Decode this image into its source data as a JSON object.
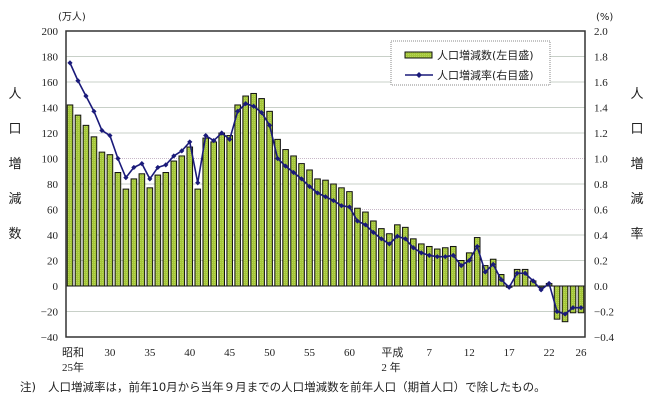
{
  "chart_data": {
    "type": "bar+line",
    "title": "",
    "categories": [
      "S25",
      "S26",
      "S27",
      "S28",
      "S29",
      "S30",
      "S31",
      "S32",
      "S33",
      "S34",
      "S35",
      "S36",
      "S37",
      "S38",
      "S39",
      "S40",
      "S41",
      "S42",
      "S43",
      "S44",
      "S45",
      "S46",
      "S47",
      "S48",
      "S49",
      "S50",
      "S51",
      "S52",
      "S53",
      "S54",
      "S55",
      "S56",
      "S57",
      "S58",
      "S59",
      "S60",
      "S61",
      "S62",
      "S63",
      "S64",
      "H2",
      "H3",
      "H4",
      "H5",
      "H6",
      "H7",
      "H8",
      "H9",
      "H10",
      "H11",
      "H12",
      "H13",
      "H14",
      "H15",
      "H16",
      "H17",
      "H18",
      "H19",
      "H20",
      "H21",
      "H22",
      "H23",
      "H24",
      "H25",
      "H26"
    ],
    "x_tick_labels": [
      {
        "index": 0,
        "line1": "昭和",
        "line2": "25年"
      },
      {
        "index": 5,
        "line1": "30",
        "line2": ""
      },
      {
        "index": 10,
        "line1": "35",
        "line2": ""
      },
      {
        "index": 15,
        "line1": "40",
        "line2": ""
      },
      {
        "index": 20,
        "line1": "45",
        "line2": ""
      },
      {
        "index": 25,
        "line1": "50",
        "line2": ""
      },
      {
        "index": 30,
        "line1": "55",
        "line2": ""
      },
      {
        "index": 35,
        "line1": "60",
        "line2": ""
      },
      {
        "index": 40,
        "line1": "平成",
        "line2": "2 年"
      },
      {
        "index": 45,
        "line1": "7",
        "line2": ""
      },
      {
        "index": 50,
        "line1": "12",
        "line2": ""
      },
      {
        "index": 55,
        "line1": "17",
        "line2": ""
      },
      {
        "index": 60,
        "line1": "22",
        "line2": ""
      },
      {
        "index": 64,
        "line1": "26",
        "line2": ""
      }
    ],
    "series": [
      {
        "name": "人口増減数(左目盛)",
        "type": "bar",
        "axis": "left",
        "color": "#a4c639",
        "values": [
          142,
          134,
          126,
          117,
          105,
          103,
          89,
          76,
          84,
          88,
          77,
          87,
          89,
          98,
          102,
          109,
          76,
          116,
          113,
          120,
          118,
          142,
          149,
          151,
          147,
          137,
          115,
          107,
          102,
          96,
          91,
          84,
          83,
          80,
          77,
          74,
          61,
          58,
          51,
          45,
          41,
          48,
          46,
          37,
          33,
          31,
          29,
          30,
          31,
          20,
          26,
          38,
          16,
          21,
          9,
          -1,
          13,
          13,
          4,
          -1,
          2,
          -26,
          -28,
          -21,
          -21
        ]
      },
      {
        "name": "人口増減率(右目盛)",
        "type": "line",
        "axis": "right",
        "color": "#1a1a7a",
        "values": [
          1.75,
          1.61,
          1.49,
          1.37,
          1.22,
          1.18,
          1.0,
          0.85,
          0.93,
          0.96,
          0.84,
          0.93,
          0.95,
          1.02,
          1.06,
          1.13,
          0.81,
          1.18,
          1.14,
          1.2,
          1.15,
          1.37,
          1.43,
          1.41,
          1.36,
          1.26,
          1.0,
          0.94,
          0.89,
          0.84,
          0.78,
          0.73,
          0.7,
          0.67,
          0.63,
          0.62,
          0.51,
          0.48,
          0.42,
          0.37,
          0.33,
          0.39,
          0.37,
          0.3,
          0.26,
          0.24,
          0.23,
          0.23,
          0.24,
          0.16,
          0.2,
          0.31,
          0.11,
          0.17,
          0.05,
          -0.01,
          0.1,
          0.1,
          0.04,
          -0.03,
          0.02,
          -0.2,
          -0.22,
          -0.17,
          -0.17
        ]
      }
    ],
    "left_axis": {
      "label": "人口増減数",
      "unit": "(万人)",
      "ylim": [
        -40,
        200
      ],
      "ticks": [
        "200",
        "180",
        "160",
        "140",
        "120",
        "100",
        "80",
        "60",
        "40",
        "20",
        "0",
        "−20",
        "−40"
      ]
    },
    "right_axis": {
      "label": "人口増減率",
      "unit": "(%)",
      "ylim": [
        -0.4,
        2.0
      ],
      "ticks": [
        "2.0",
        "1.8",
        "1.6",
        "1.4",
        "1.2",
        "1.0",
        "0.8",
        "0.6",
        "0.4",
        "0.2",
        "0.0",
        "−0.2",
        "−0.4"
      ]
    },
    "grid": true,
    "legend_position": "top-right"
  },
  "legend": {
    "bar_label": "人口増減数(左目盛)",
    "line_label": "人口増減率(右目盛)"
  },
  "note": {
    "prefix": "注)",
    "text": "人口増減率は，前年10月から当年９月までの人口増減数を前年人口（期首人口）で除したもの。"
  },
  "colors": {
    "bar": "#a4c639",
    "bar_border": "#111111",
    "line": "#1a1a7a",
    "grid": "#c8d0c8",
    "axis": "#333333"
  }
}
